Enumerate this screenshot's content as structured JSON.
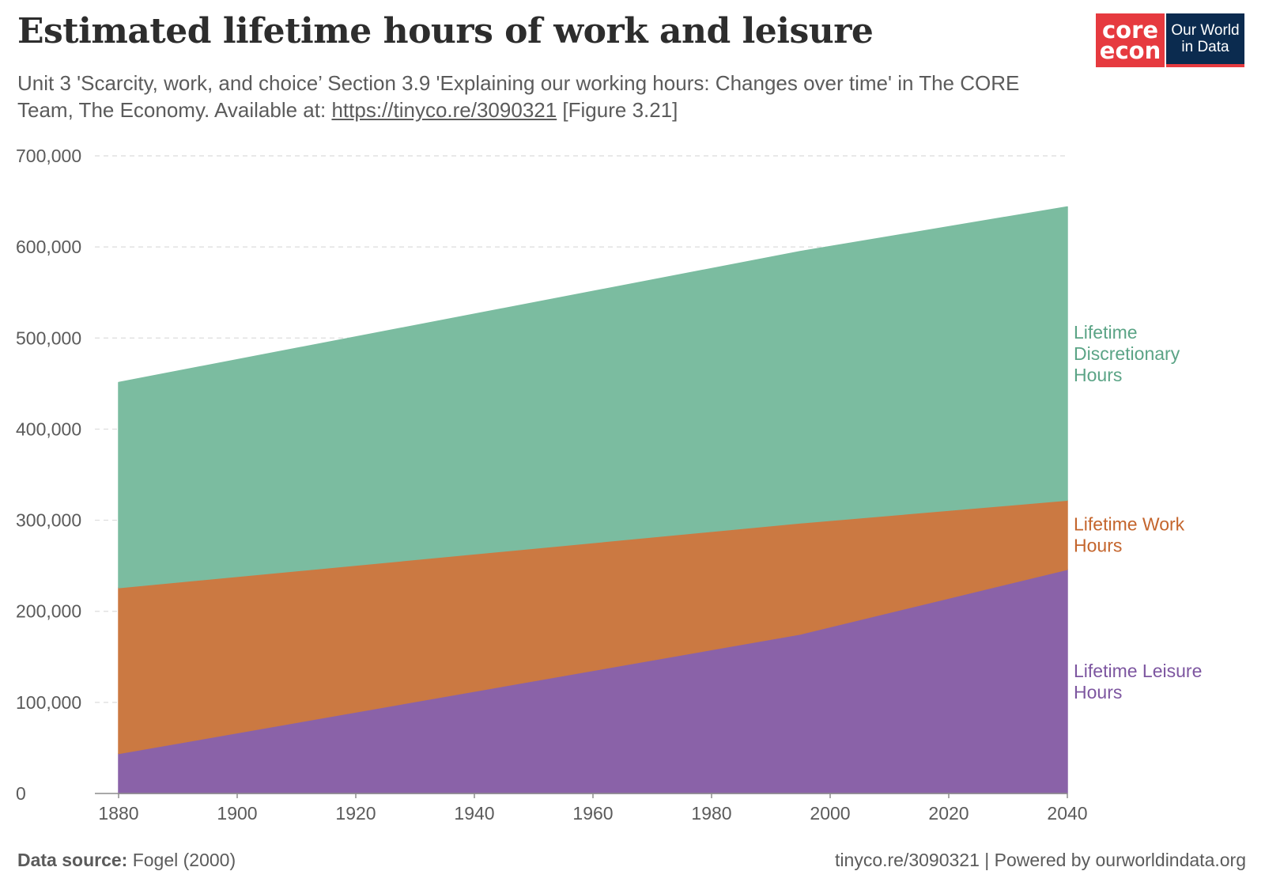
{
  "title": "Estimated lifetime hours of work and leisure",
  "subtitle": {
    "text_before": "Unit 3 'Scarcity, work, and choice’ Section 3.9 'Explaining our working hours: Changes over time' in The CORE Team, The Economy. Available at: ",
    "link_text": "https://tinyco.re/3090321",
    "text_after": " [Figure 3.21]"
  },
  "logos": {
    "core_line1": "core",
    "core_line2": "econ",
    "owid_line1": "Our World",
    "owid_line2": "in Data"
  },
  "footer": {
    "source_label": "Data source:",
    "source_value": "Fogel (2000)",
    "right": "tinyco.re/3090321 | Powered by ourworldindata.org"
  },
  "colors": {
    "discretionary": "#7bbca0",
    "work": "#cb7942",
    "leisure": "#8a62a8",
    "discretionary_label": "#5ba486",
    "work_label": "#c4652d",
    "leisure_label": "#7d56a0",
    "grid": "#dcdcdc",
    "axis": "#8c8c8c",
    "tick_text": "#5b5b5b"
  },
  "chart_data": {
    "type": "area",
    "stacked": true,
    "x": [
      1880,
      1995,
      2040
    ],
    "series": [
      {
        "name": "Lifetime Leisure Hours",
        "color_key": "leisure",
        "label_key": "leisure_label",
        "values": [
          43800,
          175000,
          246000
        ],
        "cumulative": [
          43800,
          175000,
          246000
        ]
      },
      {
        "name": "Lifetime Work Hours",
        "color_key": "work",
        "label_key": "work_label",
        "values": [
          182100,
          122000,
          76000
        ],
        "cumulative": [
          225900,
          297000,
          322000
        ]
      },
      {
        "name": "Lifetime Discretionary Hours",
        "color_key": "discretionary",
        "label_key": "discretionary_label",
        "values": [
          225300,
          298000,
          322000
        ],
        "cumulative": [
          451200,
          595000,
          644000
        ]
      }
    ],
    "xlim": [
      1876,
      2040
    ],
    "ylim": [
      0,
      700000
    ],
    "x_ticks": [
      1880,
      1900,
      1920,
      1940,
      1960,
      1980,
      2000,
      2020,
      2040
    ],
    "y_ticks": [
      0,
      100000,
      200000,
      300000,
      400000,
      500000,
      600000,
      700000
    ],
    "y_tick_labels": [
      "0",
      "100,000",
      "200,000",
      "300,000",
      "400,000",
      "500,000",
      "600,000",
      "700,000"
    ],
    "grid": "horizontal-dashed",
    "legend": "right-inline",
    "series_labels": [
      {
        "lines": [
          "Lifetime",
          "Discretionary",
          "Hours"
        ],
        "color_key": "discretionary_label"
      },
      {
        "lines": [
          "Lifetime Work",
          "Hours"
        ],
        "color_key": "work_label"
      },
      {
        "lines": [
          "Lifetime Leisure",
          "Hours"
        ],
        "color_key": "leisure_label"
      }
    ]
  }
}
